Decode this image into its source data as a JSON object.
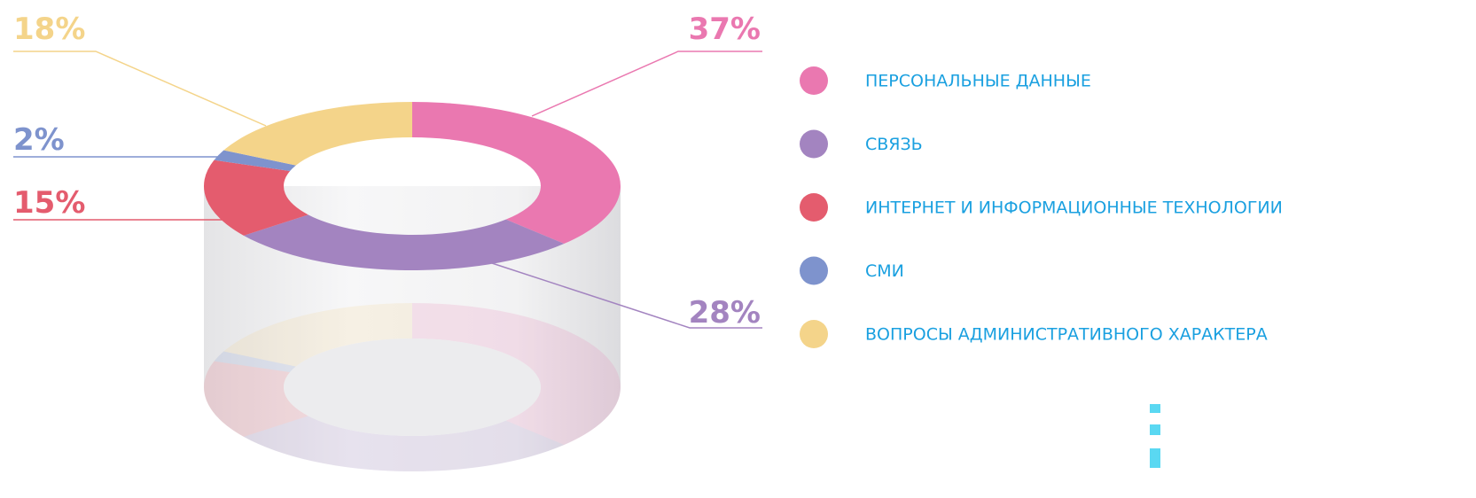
{
  "chart_data": {
    "type": "donut",
    "categories": [
      "ПЕРСОНАЛЬНЫЕ ДАННЫЕ",
      "СВЯЗЬ",
      "ИНТЕРНЕТ И ИНФОРМАЦИОННЫЕ ТЕХНОЛОГИИ",
      "СМИ",
      "ВОПРОСЫ АДМИНИСТРАТИВНОГО ХАРАКТЕРА"
    ],
    "values": [
      37,
      28,
      15,
      2,
      18
    ],
    "value_labels": [
      "37%",
      "28%",
      "15%",
      "2%",
      "18%"
    ],
    "colors": [
      "#ea78b0",
      "#a384c0",
      "#e45c6e",
      "#7e93cd",
      "#f4d48a"
    ],
    "legend": "right"
  }
}
